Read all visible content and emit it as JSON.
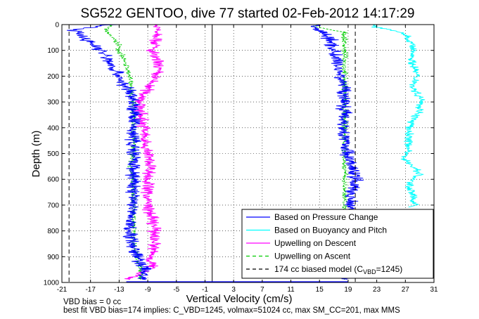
{
  "chart_data": {
    "type": "line",
    "title": "SG522 GENTOO, dive 77 started 02-Feb-2012 14:17:29",
    "xlabel": "Vertical Velocity (cm/s)",
    "ylabel": "Depth (m)",
    "xlim": [
      -21,
      31
    ],
    "ylim": [
      1000,
      0
    ],
    "xticks": [
      -21,
      -17,
      -13,
      -9,
      -5,
      -1,
      3,
      7,
      11,
      15,
      19,
      23,
      27,
      31
    ],
    "xtick_labels": [
      "-21",
      "-17",
      "-13",
      "-9",
      "-5",
      "-1",
      "3",
      "7",
      "11",
      "15",
      "19",
      "23",
      "27",
      "31"
    ],
    "yticks": [
      0,
      100,
      200,
      300,
      400,
      500,
      600,
      700,
      800,
      900,
      1000
    ],
    "ytick_labels": [
      "0",
      "100",
      "200",
      "300",
      "400",
      "500",
      "600",
      "700",
      "800",
      "900",
      "1000"
    ],
    "grid": true,
    "legend_placement": "bottom-right",
    "footer_lines": [
      "VBD bias = 0 cc",
      "best fit VBD bias=174 implies: C_VBD=1245, volmax=51024 cc, max SM_CC=201, max MMS"
    ],
    "series": [
      {
        "name": "Based on Pressure Change",
        "color": "#0000ff",
        "style": "solid",
        "noise": 0.9,
        "descent": {
          "depth": [
            0,
            20,
            40,
            60,
            80,
            100,
            120,
            140,
            160,
            180,
            200,
            230,
            260,
            300,
            350,
            400,
            450,
            500,
            550,
            600,
            650,
            700,
            750,
            800,
            850,
            900,
            950,
            990
          ],
          "velocity": [
            -14,
            -19.5,
            -18.5,
            -17.5,
            -16.5,
            -15.5,
            -15,
            -14.5,
            -14,
            -13.5,
            -13,
            -12.5,
            -11.5,
            -11,
            -11,
            -11,
            -11,
            -11,
            -11,
            -11,
            -11,
            -11,
            -11.5,
            -11.5,
            -11,
            -10.5,
            -9.5,
            -9.5
          ]
        },
        "ascent": {
          "depth": [
            990,
            950,
            900,
            850,
            800,
            750,
            700,
            650,
            600,
            550,
            500,
            450,
            400,
            350,
            300,
            250,
            200,
            150,
            100,
            60,
            30,
            10,
            0
          ],
          "velocity": [
            19,
            19,
            19,
            19,
            19.5,
            19.5,
            19.5,
            19.5,
            20,
            19.5,
            19,
            18.5,
            18.5,
            18.5,
            18.5,
            18.5,
            18,
            17.5,
            17,
            16.5,
            15.5,
            14,
            14
          ]
        }
      },
      {
        "name": "Based on Buoyancy and Pitch",
        "color": "#00ffff",
        "style": "solid",
        "noise": 0.5,
        "ascent": {
          "depth": [
            710,
            700,
            680,
            650,
            620,
            600,
            580,
            560,
            540,
            520,
            500,
            480,
            450,
            420,
            400,
            370,
            340,
            320,
            300,
            280,
            260,
            240,
            220,
            200,
            180,
            150,
            120,
            100,
            80,
            60,
            40,
            20,
            10,
            0
          ],
          "velocity": [
            27.5,
            28.5,
            28,
            28,
            27.5,
            28,
            29,
            28.5,
            27.5,
            27,
            27,
            27.5,
            27.5,
            27.5,
            27.5,
            28,
            29,
            29,
            29.5,
            29,
            28.5,
            28,
            28.5,
            28.5,
            28.5,
            28,
            28,
            28,
            28,
            27.5,
            27,
            25,
            23,
            22.5
          ]
        }
      },
      {
        "name": "Upwelling on Descent",
        "color": "#ff00ff",
        "style": "solid",
        "noise": 0.8,
        "descent": {
          "depth": [
            0,
            20,
            50,
            80,
            100,
            130,
            160,
            200,
            250,
            300,
            350,
            400,
            450,
            500,
            550,
            600,
            650,
            700,
            750,
            800,
            850,
            900,
            950,
            990
          ],
          "velocity": [
            -8,
            -7.5,
            -7.5,
            -8,
            -8.5,
            -8,
            -7.5,
            -8,
            -9,
            -10,
            -10,
            -9.5,
            -9.5,
            -9,
            -8.5,
            -9,
            -9,
            -9,
            -8.5,
            -8,
            -8,
            -8.5,
            -8.5,
            -12
          ]
        }
      },
      {
        "name": "Upwelling on Ascent",
        "color": "#00cc00",
        "style": "dashed",
        "noise": 0.35,
        "descent": {
          "depth": [
            0,
            20,
            50,
            80,
            100,
            130,
            160,
            200,
            250,
            300,
            350,
            400,
            450,
            500,
            550,
            600,
            650,
            700,
            750,
            800,
            850,
            900,
            950,
            990
          ],
          "velocity": [
            -14,
            -15,
            -14,
            -13,
            -13,
            -12.5,
            -12,
            -11.5,
            -11.5,
            -11,
            -11,
            -11,
            -11,
            -11,
            -11.5,
            -11,
            -11,
            -11,
            -11,
            -11,
            -11,
            -10.5,
            -10,
            -10
          ]
        },
        "ascent": {
          "depth": [
            990,
            950,
            900,
            850,
            800,
            750,
            700,
            650,
            600,
            550,
            500,
            450,
            400,
            350,
            300,
            250,
            200,
            150,
            100,
            60,
            30,
            10,
            0
          ],
          "velocity": [
            18.5,
            18.5,
            18.5,
            18.5,
            18.5,
            18.5,
            18.5,
            18.5,
            18.5,
            18.5,
            18.5,
            18.5,
            18.5,
            18.5,
            18.5,
            18.5,
            18.5,
            18.5,
            18.5,
            18.5,
            18.5,
            14.5,
            14.5
          ]
        }
      },
      {
        "name": "174 cc biased model (C",
        "name_subscript": "VBD",
        "name_suffix": "=1245)",
        "color": "#000000",
        "style": "dashed",
        "vertical_lines_x": [
          -20,
          20
        ]
      }
    ],
    "zero_line_x": 0,
    "bottom_line_depth": 1000
  }
}
